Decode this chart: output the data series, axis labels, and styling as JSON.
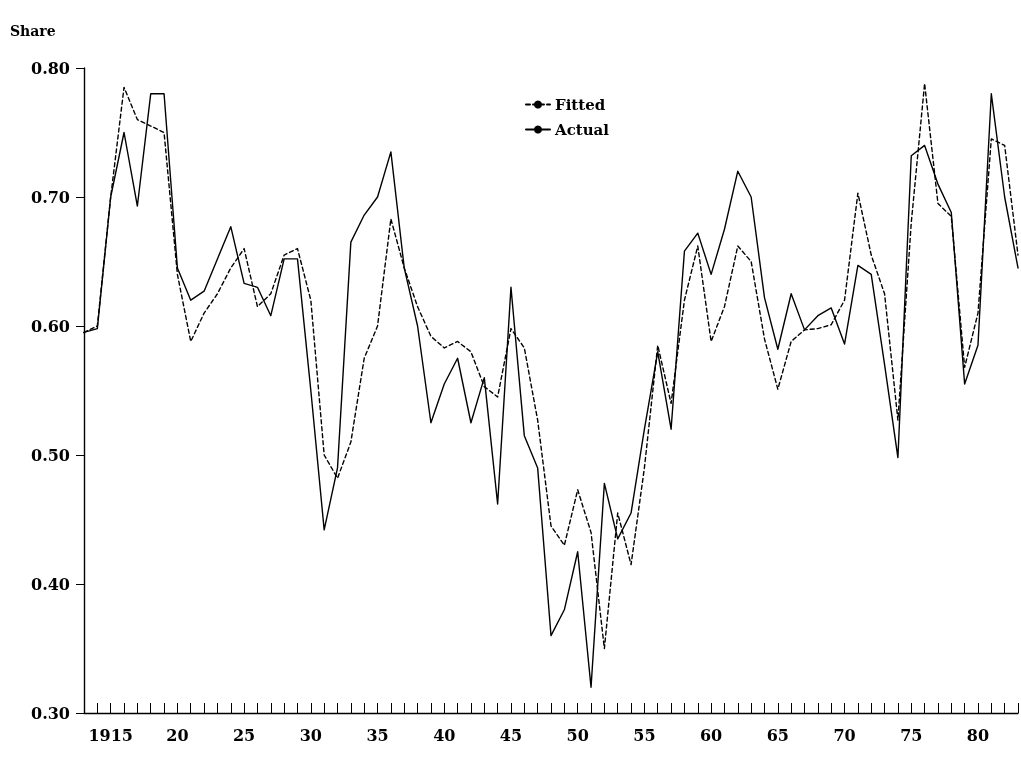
{
  "chart_data": {
    "type": "line",
    "ylabel": "Share",
    "x": [
      1913,
      1914,
      1915,
      1916,
      1917,
      1918,
      1919,
      1920,
      1921,
      1922,
      1923,
      1924,
      1925,
      1926,
      1927,
      1928,
      1929,
      1930,
      1931,
      1932,
      1933,
      1934,
      1935,
      1936,
      1937,
      1938,
      1939,
      1940,
      1941,
      1942,
      1943,
      1944,
      1945,
      1946,
      1947,
      1948,
      1949,
      1950,
      1951,
      1952,
      1953,
      1954,
      1955,
      1956,
      1957,
      1958,
      1959,
      1960,
      1961,
      1962,
      1963,
      1964,
      1965,
      1966,
      1967,
      1968,
      1969,
      1970,
      1971,
      1972,
      1973,
      1974,
      1975,
      1976,
      1977,
      1978,
      1979,
      1980,
      1981,
      1982,
      1983
    ],
    "series": [
      {
        "name": "Fitted",
        "color": "#000000",
        "line_style": "dashed",
        "values": [
          0.595,
          0.6,
          0.7,
          0.785,
          0.76,
          0.755,
          0.75,
          0.64,
          0.588,
          0.61,
          0.625,
          0.645,
          0.66,
          0.615,
          0.625,
          0.655,
          0.66,
          0.62,
          0.5,
          0.482,
          0.51,
          0.575,
          0.6,
          0.683,
          0.645,
          0.615,
          0.592,
          0.583,
          0.588,
          0.58,
          0.553,
          0.545,
          0.598,
          0.583,
          0.527,
          0.445,
          0.43,
          0.473,
          0.44,
          0.35,
          0.455,
          0.415,
          0.49,
          0.585,
          0.54,
          0.62,
          0.662,
          0.588,
          0.615,
          0.662,
          0.65,
          0.59,
          0.551,
          0.588,
          0.597,
          0.598,
          0.601,
          0.62,
          0.703,
          0.655,
          0.625,
          0.527,
          0.68,
          0.788,
          0.695,
          0.685,
          0.568,
          0.61,
          0.745,
          0.74,
          0.655
        ]
      },
      {
        "name": "Actual",
        "color": "#000000",
        "line_style": "solid",
        "values": [
          0.595,
          0.598,
          0.7,
          0.75,
          0.693,
          0.78,
          0.78,
          0.645,
          0.62,
          0.627,
          0.652,
          0.677,
          0.633,
          0.63,
          0.608,
          0.652,
          0.652,
          0.55,
          0.442,
          0.49,
          0.665,
          0.686,
          0.7,
          0.735,
          0.645,
          0.6,
          0.525,
          0.555,
          0.575,
          0.525,
          0.56,
          0.462,
          0.63,
          0.515,
          0.49,
          0.36,
          0.38,
          0.425,
          0.32,
          0.478,
          0.435,
          0.455,
          0.52,
          0.58,
          0.52,
          0.658,
          0.672,
          0.64,
          0.675,
          0.72,
          0.7,
          0.622,
          0.582,
          0.625,
          0.597,
          0.608,
          0.614,
          0.586,
          0.647,
          0.64,
          0.57,
          0.498,
          0.732,
          0.74,
          0.71,
          0.688,
          0.555,
          0.585,
          0.78,
          0.7,
          0.645
        ]
      }
    ],
    "xlim": [
      1913,
      1983
    ],
    "xticks": [
      {
        "value": 1913,
        "label": null
      },
      {
        "value": 1914,
        "label": null
      },
      1915,
      {
        "value": 1916,
        "label": null
      },
      {
        "value": 1917,
        "label": null
      },
      {
        "value": 1918,
        "label": null
      },
      {
        "value": 1919,
        "label": null
      },
      {
        "value": 1920,
        "label": "20"
      },
      {
        "value": 1921,
        "label": null
      },
      {
        "value": 1922,
        "label": null
      },
      {
        "value": 1923,
        "label": null
      },
      {
        "value": 1924,
        "label": null
      },
      {
        "value": 1925,
        "label": "25"
      },
      {
        "value": 1926,
        "label": null
      },
      {
        "value": 1927,
        "label": null
      },
      {
        "value": 1928,
        "label": null
      },
      {
        "value": 1929,
        "label": null
      },
      {
        "value": 1930,
        "label": "30"
      },
      {
        "value": 1931,
        "label": null
      },
      {
        "value": 1932,
        "label": null
      },
      {
        "value": 1933,
        "label": null
      },
      {
        "value": 1934,
        "label": null
      },
      {
        "value": 1935,
        "label": "35"
      },
      {
        "value": 1936,
        "label": null
      },
      {
        "value": 1937,
        "label": null
      },
      {
        "value": 1938,
        "label": null
      },
      {
        "value": 1939,
        "label": null
      },
      {
        "value": 1940,
        "label": "40"
      },
      {
        "value": 1941,
        "label": null
      },
      {
        "value": 1942,
        "label": null
      },
      {
        "value": 1943,
        "label": null
      },
      {
        "value": 1944,
        "label": null
      },
      {
        "value": 1945,
        "label": "45"
      },
      {
        "value": 1946,
        "label": null
      },
      {
        "value": 1947,
        "label": null
      },
      {
        "value": 1948,
        "label": null
      },
      {
        "value": 1949,
        "label": null
      },
      {
        "value": 1950,
        "label": "50"
      },
      {
        "value": 1951,
        "label": null
      },
      {
        "value": 1952,
        "label": null
      },
      {
        "value": 1953,
        "label": null
      },
      {
        "value": 1954,
        "label": null
      },
      {
        "value": 1955,
        "label": "55"
      },
      {
        "value": 1956,
        "label": null
      },
      {
        "value": 1957,
        "label": null
      },
      {
        "value": 1958,
        "label": null
      },
      {
        "value": 1959,
        "label": null
      },
      {
        "value": 1960,
        "label": "60"
      },
      {
        "value": 1961,
        "label": null
      },
      {
        "value": 1962,
        "label": null
      },
      {
        "value": 1963,
        "label": null
      },
      {
        "value": 1964,
        "label": null
      },
      {
        "value": 1965,
        "label": "65"
      },
      {
        "value": 1966,
        "label": null
      },
      {
        "value": 1967,
        "label": null
      },
      {
        "value": 1968,
        "label": null
      },
      {
        "value": 1969,
        "label": null
      },
      {
        "value": 1970,
        "label": "70"
      },
      {
        "value": 1971,
        "label": null
      },
      {
        "value": 1972,
        "label": null
      },
      {
        "value": 1973,
        "label": null
      },
      {
        "value": 1974,
        "label": null
      },
      {
        "value": 1975,
        "label": "75"
      },
      {
        "value": 1976,
        "label": null
      },
      {
        "value": 1977,
        "label": null
      },
      {
        "value": 1978,
        "label": null
      },
      {
        "value": 1979,
        "label": null
      },
      {
        "value": 1980,
        "label": "80"
      },
      {
        "value": 1981,
        "label": null
      },
      {
        "value": 1982,
        "label": null
      },
      {
        "value": 1983,
        "label": null
      }
    ],
    "ylim": [
      0.3,
      0.8
    ],
    "yticks": [
      {
        "value": 0.3,
        "label": "0.30"
      },
      {
        "value": 0.4,
        "label": "0.40"
      },
      {
        "value": 0.5,
        "label": "0.50"
      },
      {
        "value": 0.6,
        "label": "0.60"
      },
      {
        "value": 0.7,
        "label": "0.70"
      },
      {
        "value": 0.8,
        "label": "0.80"
      }
    ],
    "grid": false,
    "legend": "top",
    "marker": "none"
  }
}
